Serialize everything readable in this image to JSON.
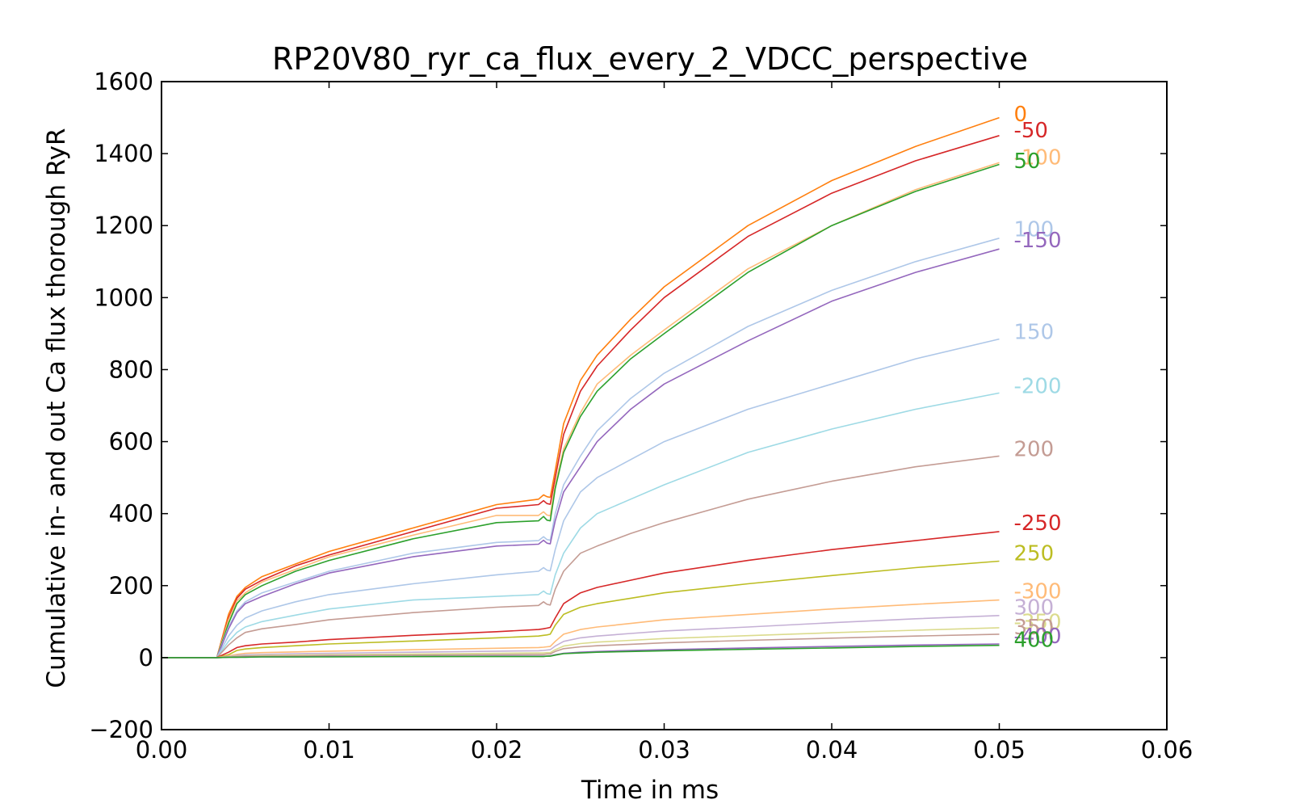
{
  "chart_data": {
    "type": "line",
    "title": "RP20V80_ryr_ca_flux_every_2_VDCC_perspective",
    "xlabel": "Time in ms",
    "ylabel": "Cumulative in- and out Ca flux thorough RyR",
    "xlim": [
      0.0,
      0.06
    ],
    "ylim": [
      -200,
      1600
    ],
    "xticks": [
      "0.00",
      "0.01",
      "0.02",
      "0.03",
      "0.04",
      "0.05",
      "0.06"
    ],
    "yticks": [
      "−200",
      "0",
      "200",
      "400",
      "600",
      "800",
      "1000",
      "1200",
      "1400",
      "1600"
    ],
    "grid": false,
    "legend": "none",
    "x": [
      0.0,
      0.003,
      0.0033,
      0.004,
      0.0045,
      0.005,
      0.006,
      0.008,
      0.01,
      0.015,
      0.02,
      0.0225,
      0.0228,
      0.023,
      0.0232,
      0.0235,
      0.024,
      0.025,
      0.026,
      0.028,
      0.03,
      0.035,
      0.04,
      0.045,
      0.05
    ],
    "series": [
      {
        "name": "0",
        "color": "#ff7f0e",
        "label_value": 1510,
        "values": [
          0,
          0,
          0,
          120,
          170,
          195,
          225,
          260,
          295,
          360,
          425,
          440,
          452,
          447,
          445,
          520,
          650,
          770,
          840,
          940,
          1030,
          1200,
          1325,
          1420,
          1500
        ]
      },
      {
        "name": "-50",
        "color": "#d62728",
        "label_value": 1465,
        "values": [
          0,
          0,
          0,
          110,
          165,
          190,
          215,
          255,
          285,
          350,
          415,
          425,
          436,
          428,
          426,
          500,
          620,
          740,
          810,
          910,
          1000,
          1170,
          1290,
          1380,
          1450
        ]
      },
      {
        "name": "-100",
        "color": "#ffbb78",
        "label_value": 1390,
        "values": [
          0,
          0,
          0,
          105,
          158,
          180,
          210,
          245,
          280,
          340,
          395,
          395,
          405,
          396,
          394,
          480,
          580,
          680,
          760,
          840,
          910,
          1080,
          1200,
          1300,
          1375
        ]
      },
      {
        "name": "50",
        "color": "#2ca02c",
        "label_value": 1380,
        "values": [
          0,
          0,
          0,
          95,
          150,
          175,
          200,
          240,
          270,
          330,
          375,
          380,
          392,
          382,
          380,
          470,
          570,
          670,
          740,
          830,
          900,
          1070,
          1200,
          1295,
          1370
        ]
      },
      {
        "name": "100",
        "color": "#aec7e8",
        "label_value": 1190,
        "values": [
          0,
          0,
          0,
          85,
          130,
          155,
          180,
          210,
          240,
          290,
          320,
          325,
          336,
          328,
          326,
          400,
          480,
          560,
          630,
          720,
          790,
          920,
          1020,
          1100,
          1165
        ]
      },
      {
        "name": "-150",
        "color": "#9467bd",
        "label_value": 1160,
        "values": [
          0,
          0,
          0,
          80,
          125,
          150,
          170,
          205,
          235,
          280,
          310,
          315,
          326,
          318,
          316,
          380,
          460,
          530,
          600,
          690,
          760,
          880,
          990,
          1070,
          1135
        ]
      },
      {
        "name": "150",
        "color": "#aec7e8",
        "label_value": 905,
        "values": [
          0,
          0,
          0,
          60,
          90,
          110,
          130,
          155,
          175,
          205,
          230,
          240,
          250,
          243,
          241,
          300,
          380,
          460,
          500,
          550,
          600,
          690,
          760,
          830,
          885
        ]
      },
      {
        "name": "-200",
        "color": "#9edae5",
        "label_value": 755,
        "values": [
          0,
          0,
          0,
          45,
          70,
          85,
          100,
          118,
          135,
          160,
          170,
          175,
          185,
          178,
          176,
          230,
          290,
          360,
          400,
          440,
          480,
          570,
          635,
          690,
          735
        ]
      },
      {
        "name": "200",
        "color": "#c49c94",
        "label_value": 580,
        "values": [
          0,
          0,
          0,
          35,
          55,
          70,
          80,
          92,
          105,
          125,
          140,
          145,
          155,
          148,
          146,
          190,
          240,
          290,
          310,
          345,
          375,
          440,
          490,
          530,
          560
        ]
      },
      {
        "name": "-250",
        "color": "#d62728",
        "label_value": 375,
        "values": [
          0,
          0,
          0,
          15,
          28,
          33,
          38,
          43,
          50,
          62,
          72,
          78,
          80,
          82,
          84,
          110,
          150,
          180,
          195,
          215,
          235,
          270,
          300,
          325,
          350
        ]
      },
      {
        "name": "250",
        "color": "#bcbd22",
        "label_value": 290,
        "values": [
          0,
          0,
          0,
          8,
          20,
          24,
          28,
          33,
          38,
          46,
          55,
          60,
          62,
          63,
          65,
          90,
          120,
          140,
          150,
          165,
          180,
          205,
          228,
          250,
          268
        ]
      },
      {
        "name": "-300",
        "color": "#ffbb78",
        "label_value": 185,
        "values": [
          0,
          0,
          0,
          5,
          9,
          12,
          14,
          16,
          18,
          22,
          26,
          28,
          29,
          30,
          31,
          45,
          65,
          78,
          85,
          95,
          105,
          120,
          135,
          148,
          160
        ]
      },
      {
        "name": "300",
        "color": "#c5b0d5",
        "label_value": 140,
        "values": [
          0,
          0,
          0,
          3,
          6,
          8,
          9,
          11,
          12,
          15,
          18,
          19,
          20,
          21,
          22,
          32,
          45,
          55,
          60,
          67,
          74,
          85,
          97,
          108,
          117
        ]
      },
      {
        "name": "-350",
        "color": "#dbdb8d",
        "label_value": 100,
        "values": [
          0,
          0,
          0,
          2,
          4,
          5,
          6,
          7,
          8,
          10,
          12,
          13,
          13,
          14,
          14,
          22,
          32,
          39,
          43,
          48,
          53,
          61,
          69,
          76,
          83
        ]
      },
      {
        "name": "350",
        "color": "#c49c94",
        "label_value": 85,
        "values": [
          0,
          0,
          0,
          1,
          3,
          4,
          4,
          5,
          6,
          7,
          8,
          9,
          9,
          10,
          10,
          17,
          25,
          30,
          33,
          37,
          41,
          48,
          54,
          60,
          65
        ]
      },
      {
        "name": "-400",
        "color": "#9467bd",
        "label_value": 60,
        "values": [
          0,
          0,
          0,
          1,
          1,
          2,
          2,
          2,
          3,
          3,
          4,
          4,
          4,
          4,
          5,
          8,
          12,
          15,
          17,
          20,
          22,
          27,
          31,
          35,
          38
        ]
      },
      {
        "name": "400",
        "color": "#2ca02c",
        "label_value": 50,
        "values": [
          0,
          0,
          0,
          1,
          1,
          1,
          2,
          2,
          2,
          3,
          3,
          3,
          3,
          4,
          4,
          7,
          11,
          13,
          15,
          17,
          19,
          23,
          27,
          31,
          34
        ]
      }
    ]
  }
}
